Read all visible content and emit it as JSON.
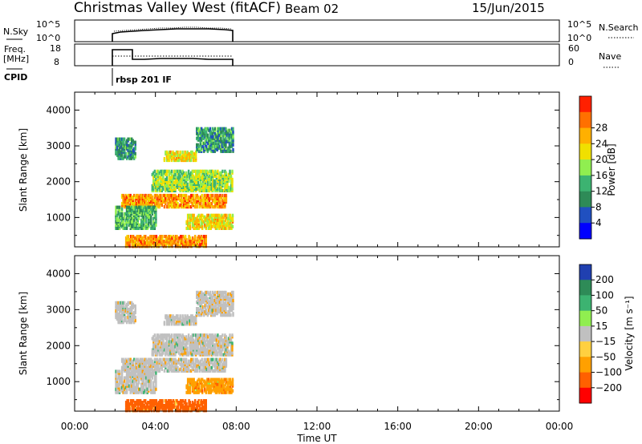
{
  "header": {
    "station": "Christmas Valley West (fitACF)",
    "beam": "Beam 02",
    "date": "15/Jun/2015"
  },
  "strip_labels": {
    "nsky": "N.Sky",
    "freq": "Freq.",
    "mhz": "[MHz]",
    "cpid": "CPID",
    "nsearch": "N.Search",
    "nave": "Nave",
    "cpid_value": "rbsp 201 IF"
  },
  "strip_ticks": {
    "nsky_left": [
      "10^5",
      "10^0"
    ],
    "nsky_right": [
      "10^5",
      "10^0"
    ],
    "freq_left": [
      "18",
      "8"
    ],
    "nave_right": [
      "60",
      "0"
    ]
  },
  "colors": {
    "power": [
      "#0000ff",
      "#2050c0",
      "#2e8b57",
      "#3cb371",
      "#90ee50",
      "#f0e000",
      "#ffb000",
      "#ff7000",
      "#ff2000"
    ],
    "velocity": [
      "#ff0000",
      "#ff6000",
      "#ffa000",
      "#ffd040",
      "#c0c0c0",
      "#90ee50",
      "#3cb371",
      "#2e8b57",
      "#2040b0"
    ]
  },
  "chart_data": [
    {
      "type": "heatmap",
      "title": "Power",
      "xlabel": "Time UT",
      "ylabel": "Slant Range [km]",
      "x_ticks": [
        "00:00",
        "04:00",
        "08:00",
        "12:00",
        "16:00",
        "20:00",
        "00:00"
      ],
      "y_ticks": [
        "1000",
        "2000",
        "3000",
        "4000"
      ],
      "xlim_hours": [
        0,
        24
      ],
      "ylim_km": [
        180,
        4500
      ],
      "colorbar_label": "Power [dB]",
      "colorbar_ticks": [
        "4",
        "8",
        "12",
        "16",
        "20",
        "24",
        "28"
      ],
      "data_extent_hours": [
        2.0,
        8.0
      ],
      "bands": [
        {
          "t_start": 2.0,
          "t_end": 3.0,
          "range_start": 2650,
          "range_end": 3200,
          "value_db": 12
        },
        {
          "t_start": 4.4,
          "t_end": 6.0,
          "range_start": 2600,
          "range_end": 2850,
          "value_db": 22
        },
        {
          "t_start": 6.0,
          "t_end": 7.8,
          "range_start": 2850,
          "range_end": 3500,
          "value_db": 12
        },
        {
          "t_start": 3.8,
          "t_end": 7.8,
          "range_start": 1750,
          "range_end": 2300,
          "value_db": 18
        },
        {
          "t_start": 2.3,
          "t_end": 7.5,
          "range_start": 1300,
          "range_end": 1650,
          "value_db": 26
        },
        {
          "t_start": 2.0,
          "t_end": 4.0,
          "range_start": 700,
          "range_end": 1300,
          "value_db": 14
        },
        {
          "t_start": 5.5,
          "t_end": 7.8,
          "range_start": 700,
          "range_end": 1100,
          "value_db": 22
        },
        {
          "t_start": 2.5,
          "t_end": 6.5,
          "range_start": 200,
          "range_end": 500,
          "value_db": 26
        }
      ]
    },
    {
      "type": "heatmap",
      "title": "Velocity",
      "xlabel": "Time UT",
      "ylabel": "Slant Range [km]",
      "x_ticks": [
        "00:00",
        "04:00",
        "08:00",
        "12:00",
        "16:00",
        "20:00",
        "00:00"
      ],
      "y_ticks": [
        "1000",
        "2000",
        "3000",
        "4000"
      ],
      "xlim_hours": [
        0,
        24
      ],
      "ylim_km": [
        180,
        4500
      ],
      "colorbar_label": "Velocity [m s⁻¹]",
      "colorbar_ticks": [
        "200",
        "100",
        "50",
        "15",
        "−15",
        "−50",
        "−100",
        "−200"
      ],
      "data_extent_hours": [
        2.0,
        8.0
      ],
      "bands": [
        {
          "t_start": 2.0,
          "t_end": 3.0,
          "range_start": 2650,
          "range_end": 3200,
          "value_ms": 0
        },
        {
          "t_start": 4.4,
          "t_end": 6.0,
          "range_start": 2600,
          "range_end": 2850,
          "value_ms": 0
        },
        {
          "t_start": 6.0,
          "t_end": 7.8,
          "range_start": 2850,
          "range_end": 3500,
          "value_ms": 0
        },
        {
          "t_start": 3.8,
          "t_end": 7.8,
          "range_start": 1750,
          "range_end": 2300,
          "value_ms": 0
        },
        {
          "t_start": 2.3,
          "t_end": 7.5,
          "range_start": 1300,
          "range_end": 1650,
          "value_ms": 0
        },
        {
          "t_start": 2.0,
          "t_end": 4.0,
          "range_start": 700,
          "range_end": 1300,
          "value_ms": 0
        },
        {
          "t_start": 5.5,
          "t_end": 7.8,
          "range_start": 700,
          "range_end": 1100,
          "value_ms": -50
        },
        {
          "t_start": 2.5,
          "t_end": 6.5,
          "range_start": 200,
          "range_end": 500,
          "value_ms": -100
        }
      ]
    }
  ]
}
